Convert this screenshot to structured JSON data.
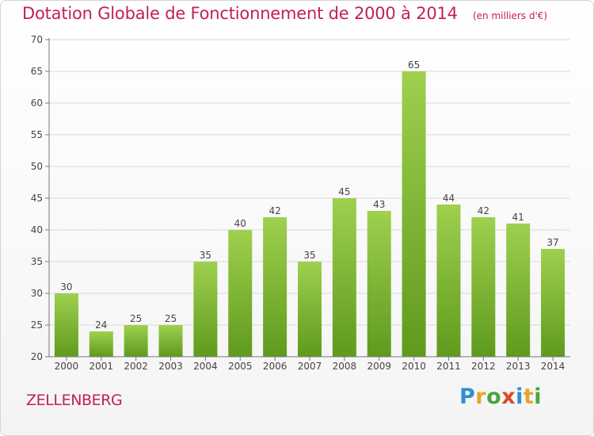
{
  "header": {
    "title": "Dotation Globale de Fonctionnement de 2000 à 2014",
    "subtitle": "(en milliers d'€)"
  },
  "commune": "ZELLENBERG",
  "logo": {
    "text": "Proxiti",
    "letters": [
      "P",
      "r",
      "o",
      "x",
      "i",
      "t",
      "i"
    ]
  },
  "colors": {
    "title": "#c21e5c",
    "bar_top": "#9fd04f",
    "bar_bottom": "#5f9a1d"
  },
  "chart_data": {
    "type": "bar",
    "categories": [
      "2000",
      "2001",
      "2002",
      "2003",
      "2004",
      "2005",
      "2006",
      "2007",
      "2008",
      "2009",
      "2010",
      "2011",
      "2012",
      "2013",
      "2014"
    ],
    "values": [
      30,
      24,
      25,
      25,
      35,
      40,
      42,
      35,
      45,
      43,
      65,
      44,
      42,
      41,
      37
    ],
    "data_labels": [
      "30",
      "24",
      "25",
      "25",
      "35",
      "40",
      "42",
      "35",
      "45",
      "43",
      "65",
      "44",
      "42",
      "41",
      "37"
    ],
    "y_ticks": [
      20,
      25,
      30,
      35,
      40,
      45,
      50,
      55,
      60,
      65,
      70
    ],
    "ylim": [
      20,
      70
    ],
    "grid": "horizontal",
    "xlabel": "",
    "ylabel": ""
  }
}
